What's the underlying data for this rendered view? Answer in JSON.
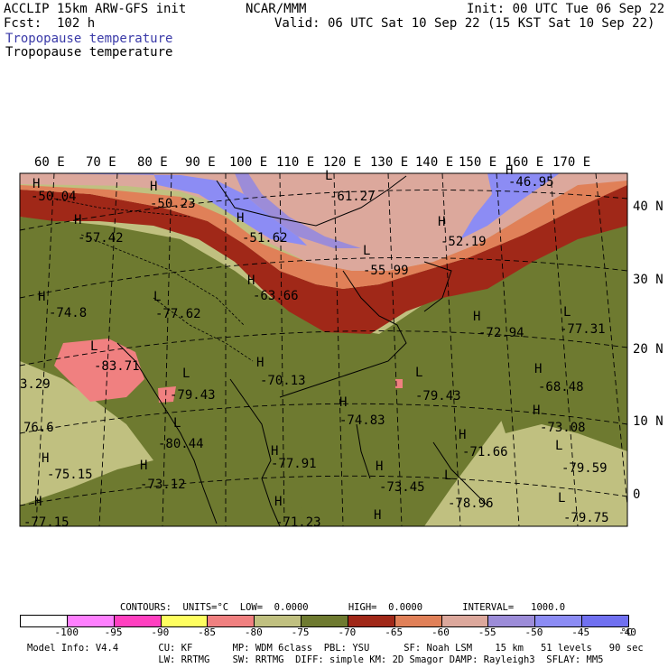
{
  "header": {
    "model_title": "ACCLIP 15km ARW-GFS init",
    "institution": "NCAR/MMM",
    "init_time": "Init: 00 UTC Tue 06 Sep 22",
    "forecast": "Fcst:  102 h",
    "valid_time": "Valid: 06 UTC Sat 10 Sep 22 (15 KST Sat 10 Sep 22)",
    "field_title_blue": "Tropopause temperature",
    "field_title_black": "Tropopause temperature"
  },
  "map": {
    "lon_labels": [
      "60 E",
      "70 E",
      "80 E",
      "90 E",
      "100 E",
      "110 E",
      "120 E",
      "130 E",
      "140 E",
      "150 E",
      "160 E",
      "170 E"
    ],
    "lat_labels": [
      "40 N",
      "30 N",
      "20 N",
      "10 N",
      "0"
    ],
    "extrema": [
      {
        "id": "ext-1",
        "letter": "H",
        "value": "-50.04"
      },
      {
        "id": "ext-2",
        "letter": "H",
        "value": "-50.23"
      },
      {
        "id": "ext-3",
        "letter": "L",
        "value": "-61.27"
      },
      {
        "id": "ext-4",
        "letter": "H",
        "value": "-46.95"
      },
      {
        "id": "ext-5",
        "letter": "H",
        "value": "-57.42"
      },
      {
        "id": "ext-6",
        "letter": "H",
        "value": "-51.62"
      },
      {
        "id": "ext-7",
        "letter": "H",
        "value": "-52.19"
      },
      {
        "id": "ext-8",
        "letter": "L",
        "value": "-55.99"
      },
      {
        "id": "ext-9",
        "letter": "H",
        "value": "-63.66"
      },
      {
        "id": "ext-10",
        "letter": "H",
        "value": "-74.8"
      },
      {
        "id": "ext-11",
        "letter": "L",
        "value": "-77.62"
      },
      {
        "id": "ext-12",
        "letter": "H",
        "value": "-72.94"
      },
      {
        "id": "ext-13",
        "letter": "L",
        "value": "-77.31"
      },
      {
        "id": "ext-14",
        "letter": "L",
        "value": "-83.71"
      },
      {
        "id": "ext-15",
        "letter": "H",
        "value": "-70.13"
      },
      {
        "id": "ext-16",
        "letter": "H",
        "value": "-68.48"
      },
      {
        "id": "ext-17",
        "letter": "",
        "value": "3.29"
      },
      {
        "id": "ext-18",
        "letter": "L",
        "value": "-79.43"
      },
      {
        "id": "ext-19",
        "letter": "L",
        "value": "-79.43"
      },
      {
        "id": "ext-20",
        "letter": "H",
        "value": "-74.83"
      },
      {
        "id": "ext-21",
        "letter": "H",
        "value": "-73.08"
      },
      {
        "id": "ext-22",
        "letter": "",
        "value": "76.6"
      },
      {
        "id": "ext-23",
        "letter": "L",
        "value": "-80.44"
      },
      {
        "id": "ext-24",
        "letter": "H",
        "value": "-71.66"
      },
      {
        "id": "ext-25",
        "letter": "H",
        "value": "-75.15"
      },
      {
        "id": "ext-26",
        "letter": "H",
        "value": "-77.91"
      },
      {
        "id": "ext-27",
        "letter": "L",
        "value": "-79.59"
      },
      {
        "id": "ext-28",
        "letter": "H",
        "value": "-73.12"
      },
      {
        "id": "ext-29",
        "letter": "H",
        "value": "-73.45"
      },
      {
        "id": "ext-30",
        "letter": "L",
        "value": "-78.96"
      },
      {
        "id": "ext-31",
        "letter": "H",
        "value": "-77.15"
      },
      {
        "id": "ext-32",
        "letter": "H",
        "value": "-71.23"
      },
      {
        "id": "ext-33",
        "letter": "L",
        "value": "-79.75"
      },
      {
        "id": "ext-34",
        "letter": "H",
        "value": ""
      }
    ]
  },
  "contours_line": "CONTOURS:  UNITS=°C  LOW=  0.0000       HIGH=  0.0000       INTERVAL=   1000.0",
  "colorbar": {
    "colors": [
      "#ffffff",
      "#ff80ff",
      "#ff40c0",
      "#ffff60",
      "#f08080",
      "#c0c080",
      "#6e7a30",
      "#a02818",
      "#e08058",
      "#dca89c",
      "#9c8cd8",
      "#8c8cf4",
      "#7070f0"
    ],
    "labels": [
      "-100",
      "-95",
      "-90",
      "-85",
      "-80",
      "-75",
      "-70",
      "-65",
      "-60",
      "-55",
      "-50",
      "-45",
      "-40"
    ],
    "unit": "°C"
  },
  "footer": {
    "line1": "Model Info: V4.4       CU: KF       MP: WDM 6class  PBL: YSU      SF: Noah LSM    15 km   51 levels   90 sec",
    "line2": "                       LW: RRTMG    SW: RRTMG  DIFF: simple KM: 2D Smagor DAMP: Rayleigh3  SFLAY: MM5"
  },
  "colors": {
    "warm_tropics": "#c0c080",
    "olive": "#6e7a30",
    "dark_red": "#a02818",
    "salmon": "#e08058",
    "pink": "#dca89c",
    "lavender": "#9c8cd8",
    "blue": "#8c8cf4",
    "cold_pink": "#f08080"
  }
}
